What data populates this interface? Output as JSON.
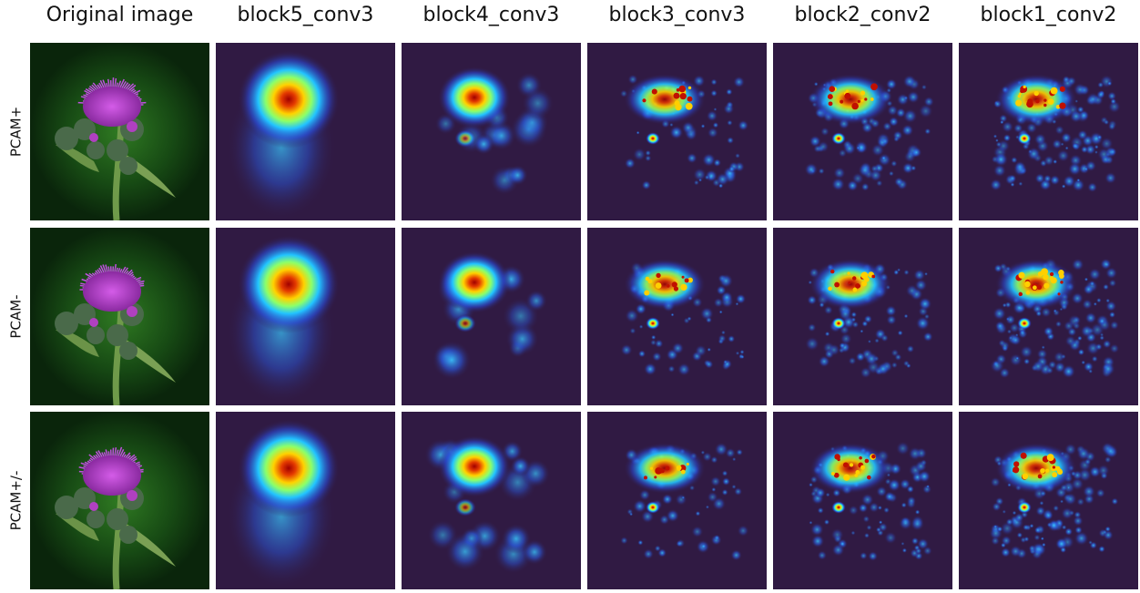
{
  "columns": [
    "Original image",
    "block5_conv3",
    "block4_conv3",
    "block3_conv3",
    "block2_conv2",
    "block1_conv2"
  ],
  "rows": [
    "PCAM+",
    "PCAM-",
    "PCAM+/-"
  ]
}
